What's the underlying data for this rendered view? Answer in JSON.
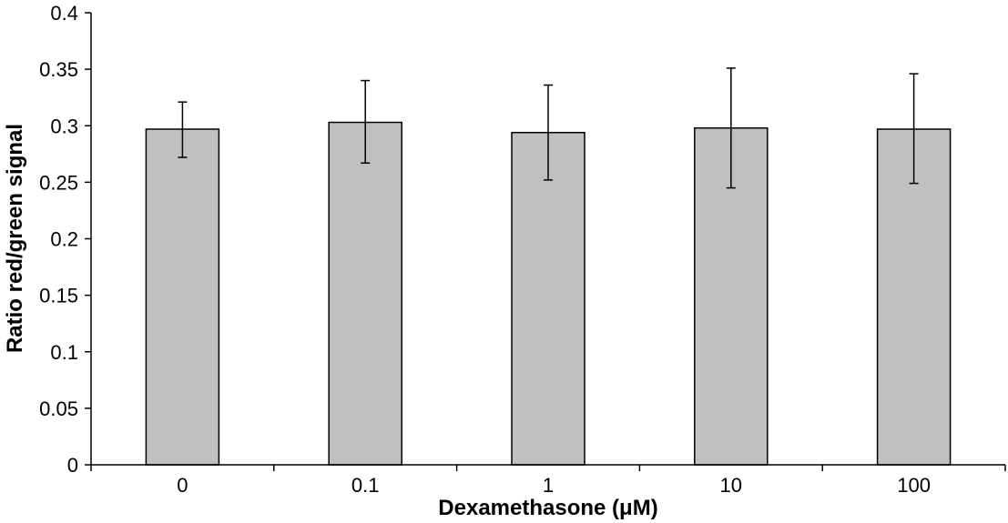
{
  "chart_data": {
    "type": "bar",
    "title": "",
    "xlabel": "Dexamethasone (μM)",
    "ylabel": "Ratio red/green signal",
    "categories": [
      "0",
      "0.1",
      "1",
      "10",
      "100"
    ],
    "values": [
      0.297,
      0.303,
      0.294,
      0.298,
      0.297
    ],
    "error_upper": [
      0.321,
      0.34,
      0.336,
      0.351,
      0.346
    ],
    "error_lower": [
      0.272,
      0.267,
      0.252,
      0.245,
      0.249
    ],
    "ylim": [
      0,
      0.4
    ],
    "yticks": [
      "0",
      "0.05",
      "0.1",
      "0.15",
      "0.2",
      "0.25",
      "0.3",
      "0.35",
      "0.4"
    ],
    "grid": false,
    "colors": {
      "bar_fill": "#c0c0c0",
      "bar_stroke": "#000000",
      "axis": "#000000"
    }
  }
}
